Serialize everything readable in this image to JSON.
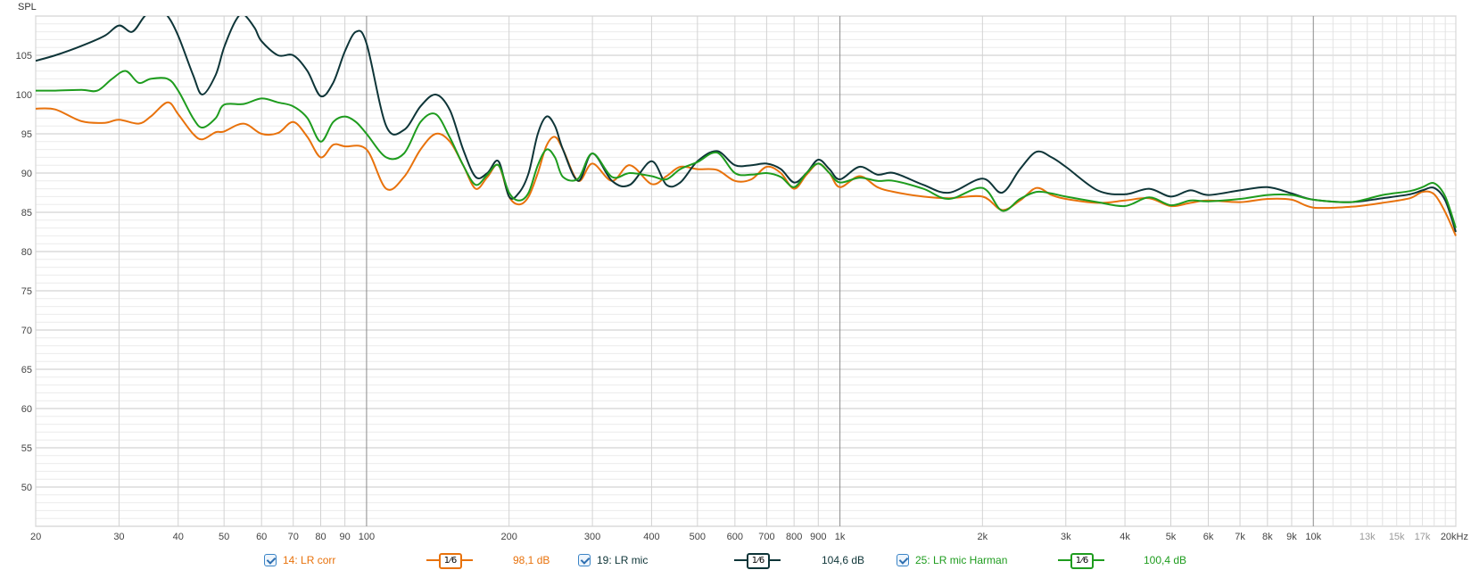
{
  "chart_data": {
    "type": "line",
    "ylabel": "SPL",
    "x_scale": "log",
    "xlim": [
      20,
      20000
    ],
    "ylim": [
      45,
      110
    ],
    "grid": true,
    "x_ticks": [
      {
        "v": 20,
        "label": "20",
        "minor": false
      },
      {
        "v": 30,
        "label": "30",
        "minor": false
      },
      {
        "v": 40,
        "label": "40",
        "minor": false
      },
      {
        "v": 50,
        "label": "50",
        "minor": false
      },
      {
        "v": 60,
        "label": "60",
        "minor": false
      },
      {
        "v": 70,
        "label": "70",
        "minor": false
      },
      {
        "v": 80,
        "label": "80",
        "minor": false
      },
      {
        "v": 90,
        "label": "90",
        "minor": false
      },
      {
        "v": 100,
        "label": "100",
        "minor": false
      },
      {
        "v": 200,
        "label": "200",
        "minor": false
      },
      {
        "v": 300,
        "label": "300",
        "minor": false
      },
      {
        "v": 400,
        "label": "400",
        "minor": false
      },
      {
        "v": 500,
        "label": "500",
        "minor": false
      },
      {
        "v": 600,
        "label": "600",
        "minor": false
      },
      {
        "v": 700,
        "label": "700",
        "minor": false
      },
      {
        "v": 800,
        "label": "800",
        "minor": false
      },
      {
        "v": 900,
        "label": "900",
        "minor": false
      },
      {
        "v": 1000,
        "label": "1k",
        "minor": false
      },
      {
        "v": 2000,
        "label": "2k",
        "minor": false
      },
      {
        "v": 3000,
        "label": "3k",
        "minor": false
      },
      {
        "v": 4000,
        "label": "4k",
        "minor": false
      },
      {
        "v": 5000,
        "label": "5k",
        "minor": false
      },
      {
        "v": 6000,
        "label": "6k",
        "minor": false
      },
      {
        "v": 7000,
        "label": "7k",
        "minor": false
      },
      {
        "v": 8000,
        "label": "8k",
        "minor": false
      },
      {
        "v": 9000,
        "label": "9k",
        "minor": false
      },
      {
        "v": 10000,
        "label": "10k",
        "minor": false
      },
      {
        "v": 13000,
        "label": "13k",
        "minor": true
      },
      {
        "v": 15000,
        "label": "15k",
        "minor": true
      },
      {
        "v": 17000,
        "label": "17k",
        "minor": true
      },
      {
        "v": 20000,
        "label": "20kHz",
        "minor": false
      }
    ],
    "y_ticks": [
      50,
      55,
      60,
      65,
      70,
      75,
      80,
      85,
      90,
      95,
      100,
      105
    ],
    "series": [
      {
        "name": "14: LR corr",
        "color": "#e8720c",
        "x": [
          20,
          22,
          25,
          28,
          30,
          33,
          35,
          38,
          40,
          43,
          45,
          48,
          50,
          55,
          60,
          65,
          70,
          75,
          80,
          85,
          90,
          100,
          110,
          120,
          130,
          140,
          150,
          160,
          170,
          180,
          190,
          200,
          210,
          220,
          230,
          240,
          250,
          260,
          280,
          300,
          330,
          360,
          400,
          430,
          460,
          500,
          550,
          600,
          650,
          700,
          750,
          800,
          850,
          900,
          950,
          1000,
          1100,
          1200,
          1300,
          1500,
          1700,
          2000,
          2200,
          2400,
          2600,
          2800,
          3000,
          3500,
          4000,
          4500,
          5000,
          5500,
          6000,
          7000,
          8000,
          9000,
          10000,
          12000,
          14000,
          16000,
          17000,
          18000,
          19000,
          20000
        ],
        "y": [
          98.2,
          98.1,
          96.6,
          96.4,
          96.8,
          96.3,
          97.2,
          99.0,
          97.5,
          95.0,
          94.3,
          95.2,
          95.3,
          96.3,
          95.0,
          95.1,
          96.5,
          94.6,
          92.0,
          93.6,
          93.4,
          93.0,
          88.0,
          89.5,
          93.0,
          95.0,
          94.0,
          91.0,
          88.0,
          89.5,
          91.0,
          87.0,
          86.0,
          87.0,
          90.0,
          93.5,
          94.6,
          93.0,
          89.0,
          91.2,
          89.0,
          91.0,
          88.6,
          89.6,
          90.8,
          90.5,
          90.4,
          89.0,
          89.2,
          90.8,
          90.0,
          88.0,
          89.8,
          91.2,
          90.0,
          88.2,
          89.6,
          88.2,
          87.6,
          87.0,
          86.8,
          87.0,
          85.3,
          86.5,
          88.1,
          87.2,
          86.7,
          86.2,
          86.5,
          86.8,
          85.8,
          86.2,
          86.5,
          86.3,
          86.7,
          86.6,
          85.6,
          85.7,
          86.2,
          86.8,
          87.6,
          87.3,
          85.0,
          82.0
        ]
      },
      {
        "name": "19: LR mic",
        "color": "#0e3538",
        "x": [
          20,
          22,
          25,
          28,
          30,
          32,
          34,
          36,
          38,
          40,
          43,
          45,
          48,
          50,
          53,
          55,
          58,
          60,
          65,
          70,
          75,
          80,
          85,
          90,
          95,
          100,
          110,
          120,
          130,
          140,
          150,
          160,
          170,
          180,
          190,
          200,
          210,
          220,
          230,
          240,
          250,
          260,
          280,
          300,
          330,
          360,
          400,
          430,
          460,
          500,
          550,
          600,
          650,
          700,
          750,
          800,
          850,
          900,
          950,
          1000,
          1100,
          1200,
          1300,
          1500,
          1700,
          2000,
          2200,
          2400,
          2600,
          2800,
          3000,
          3500,
          4000,
          4500,
          5000,
          5500,
          6000,
          7000,
          8000,
          9000,
          10000,
          12000,
          14000,
          16000,
          17000,
          18000,
          19000,
          20000
        ],
        "y": [
          104.3,
          105.0,
          106.2,
          107.5,
          108.8,
          108.0,
          110.0,
          111.0,
          110.0,
          107.5,
          102.5,
          100.0,
          102.5,
          106.0,
          109.5,
          110.2,
          108.5,
          106.8,
          105.0,
          105.0,
          103.0,
          99.8,
          101.5,
          105.5,
          108.0,
          106.5,
          96.0,
          95.5,
          98.5,
          100.0,
          98.0,
          93.0,
          89.5,
          90.0,
          91.5,
          87.0,
          87.5,
          90.0,
          95.0,
          97.2,
          96.0,
          93.0,
          89.0,
          92.5,
          89.0,
          88.5,
          91.5,
          88.5,
          88.8,
          91.5,
          92.8,
          91.0,
          91.0,
          91.2,
          90.5,
          88.8,
          90.0,
          91.7,
          90.5,
          89.2,
          90.8,
          89.8,
          90.0,
          88.5,
          87.5,
          89.3,
          87.5,
          90.5,
          92.7,
          92.0,
          90.8,
          87.8,
          87.3,
          88.0,
          87.0,
          87.8,
          87.2,
          87.8,
          88.2,
          87.4,
          86.6,
          86.3,
          86.8,
          87.3,
          87.8,
          88.1,
          86.5,
          82.5
        ]
      },
      {
        "name": "25: LR mic Harman",
        "color": "#1e9c1e",
        "x": [
          20,
          22,
          25,
          27,
          29,
          31,
          33,
          35,
          38,
          40,
          43,
          45,
          48,
          50,
          55,
          60,
          65,
          70,
          75,
          80,
          85,
          90,
          95,
          100,
          110,
          120,
          130,
          140,
          150,
          160,
          170,
          180,
          190,
          200,
          210,
          220,
          230,
          240,
          250,
          260,
          280,
          300,
          330,
          360,
          400,
          430,
          460,
          500,
          550,
          600,
          650,
          700,
          750,
          800,
          850,
          900,
          950,
          1000,
          1100,
          1200,
          1300,
          1500,
          1700,
          2000,
          2200,
          2400,
          2600,
          2800,
          3000,
          3500,
          4000,
          4500,
          5000,
          5500,
          6000,
          7000,
          8000,
          9000,
          10000,
          12000,
          14000,
          16000,
          17000,
          18000,
          19000,
          20000
        ],
        "y": [
          100.5,
          100.5,
          100.6,
          100.5,
          102.0,
          103.0,
          101.5,
          102.0,
          102.0,
          100.5,
          97.0,
          95.8,
          97.0,
          98.7,
          98.8,
          99.5,
          99.0,
          98.5,
          97.0,
          94.0,
          96.5,
          97.2,
          96.5,
          95.0,
          92.0,
          92.5,
          96.5,
          97.5,
          94.5,
          91.0,
          88.5,
          89.8,
          91.0,
          87.5,
          86.5,
          87.5,
          91.0,
          93.0,
          92.0,
          89.5,
          89.3,
          92.5,
          89.5,
          90.0,
          89.6,
          89.2,
          90.5,
          91.4,
          92.6,
          90.0,
          89.8,
          90.0,
          89.5,
          88.2,
          90.0,
          91.2,
          90.0,
          88.8,
          89.4,
          89.0,
          89.0,
          88.0,
          86.7,
          88.1,
          85.2,
          86.7,
          87.6,
          87.4,
          87.0,
          86.3,
          85.8,
          86.9,
          85.9,
          86.5,
          86.4,
          86.7,
          87.2,
          87.2,
          86.6,
          86.3,
          87.2,
          87.7,
          88.2,
          88.7,
          87.0,
          83.0
        ]
      }
    ]
  },
  "legend": [
    {
      "checked": true,
      "name": "14: LR corr",
      "smoothing": "1⁄6",
      "level": "98,1 dB",
      "color": "#e8720c"
    },
    {
      "checked": true,
      "name": "19: LR mic",
      "smoothing": "1⁄6",
      "level": "104,6 dB",
      "color": "#0e3538"
    },
    {
      "checked": true,
      "name": "25: LR mic Harman",
      "smoothing": "1⁄6",
      "level": "100,4 dB",
      "color": "#1e9c1e"
    }
  ]
}
